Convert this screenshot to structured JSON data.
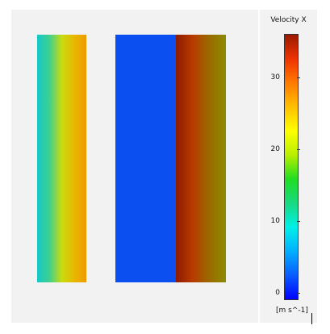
{
  "legend": {
    "title": "Velocity X",
    "units": "[m s^-1]",
    "ticks": [
      {
        "value": 0,
        "label": "0"
      },
      {
        "value": 10,
        "label": "10"
      },
      {
        "value": 20,
        "label": "20"
      },
      {
        "value": 30,
        "label": "30"
      }
    ],
    "range": [
      -1,
      36
    ],
    "colormap": [
      "#0000ff",
      "#0a5cff",
      "#00b0ff",
      "#00f0e8",
      "#18d980",
      "#22dd22",
      "#b8ef00",
      "#ffff00",
      "#ffc000",
      "#ff7a00",
      "#ee3300",
      "#9a1a00"
    ]
  },
  "bands": [
    {
      "name": "left-strip",
      "colors": [
        "#14c8c8",
        "#3fd090",
        "#c8dc10",
        "#e8b800",
        "#ef9a00"
      ]
    },
    {
      "name": "right-block-left",
      "colors": [
        "#0b4ff0",
        "#0b4ff0"
      ]
    },
    {
      "name": "right-block-right",
      "colors": [
        "#8e1a00",
        "#b83a00",
        "#9a6a00",
        "#8c8c00"
      ]
    }
  ]
}
